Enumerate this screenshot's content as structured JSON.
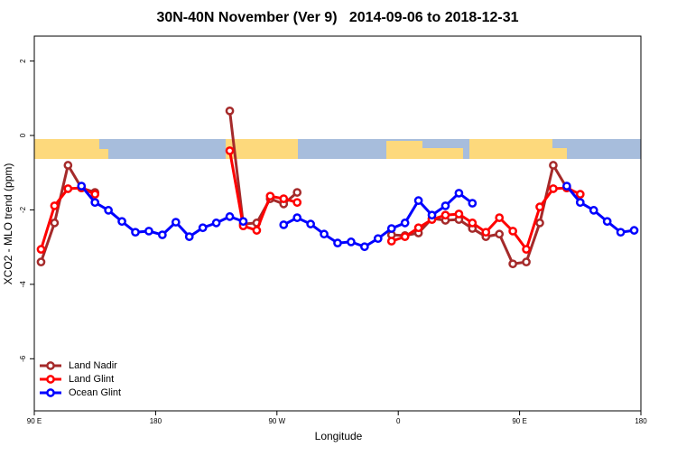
{
  "chart_data": {
    "type": "line",
    "title": "30N-40N November (Ver 9)   2014-09-06 to 2018-12-31",
    "x_label": "Longitude",
    "y_label": "XCO2 - MLO trend (ppm)",
    "x": [
      95,
      105,
      115,
      125,
      135,
      145,
      155,
      165,
      175,
      185,
      195,
      205,
      215,
      225,
      235,
      245,
      255,
      265,
      275,
      285,
      295,
      305,
      315,
      325,
      335,
      345,
      355,
      365,
      375,
      385,
      395,
      405,
      415,
      425,
      435,
      445,
      455,
      465,
      475,
      485,
      495,
      505,
      515,
      525,
      535
    ],
    "series": [
      {
        "name": "Land Nadir",
        "color": "#a52a2a",
        "values": [
          -3.4,
          -2.35,
          -0.8,
          -1.41,
          -1.53,
          null,
          null,
          null,
          null,
          null,
          null,
          null,
          null,
          null,
          0.66,
          -2.38,
          -2.35,
          -1.7,
          -1.84,
          -1.53,
          null,
          null,
          null,
          null,
          null,
          null,
          -2.67,
          -2.69,
          -2.62,
          -2.23,
          -2.28,
          -2.26,
          -2.5,
          -2.72,
          -2.65,
          -3.45,
          -3.4,
          -2.35,
          -0.8,
          -1.41,
          null,
          null,
          null,
          null,
          null
        ]
      },
      {
        "name": "Land Glint",
        "color": "#ff0000",
        "values": [
          -3.06,
          -1.89,
          -1.43,
          -1.41,
          -1.58,
          null,
          null,
          null,
          null,
          null,
          null,
          null,
          null,
          null,
          -0.41,
          -2.43,
          -2.55,
          -1.63,
          -1.7,
          -1.8,
          null,
          null,
          null,
          null,
          null,
          null,
          -2.84,
          -2.72,
          -2.48,
          -2.26,
          -2.14,
          -2.11,
          -2.35,
          -2.6,
          -2.21,
          -2.57,
          -3.06,
          -1.92,
          -1.43,
          -1.41,
          -1.58,
          null,
          null,
          null,
          null
        ]
      },
      {
        "name": "Ocean Glint",
        "color": "#0000ff",
        "values": [
          null,
          null,
          null,
          -1.36,
          -1.8,
          -2.01,
          -2.31,
          -2.6,
          -2.57,
          -2.67,
          -2.33,
          -2.72,
          -2.48,
          -2.35,
          -2.18,
          -2.31,
          null,
          null,
          -2.4,
          -2.21,
          -2.38,
          -2.65,
          -2.89,
          -2.86,
          -2.99,
          -2.77,
          -2.5,
          -2.35,
          -1.75,
          -2.14,
          -1.89,
          -1.55,
          -1.82,
          null,
          null,
          null,
          null,
          null,
          null,
          -1.36,
          -1.8,
          -2.01,
          -2.31,
          -2.6,
          -2.55
        ]
      }
    ],
    "xlim": [
      90,
      540
    ],
    "ylim": [
      -7.4,
      2.67
    ],
    "xticks": [
      {
        "value": 90,
        "label": "90 E"
      },
      180,
      {
        "value": 270,
        "label": "90 W"
      },
      {
        "value": 360,
        "label": "0"
      },
      {
        "value": 450,
        "label": "90 E"
      },
      {
        "value": 540,
        "label": "180"
      }
    ],
    "yticks": [
      2,
      0,
      -2,
      -4,
      -6
    ],
    "legend": "bottom-left"
  }
}
